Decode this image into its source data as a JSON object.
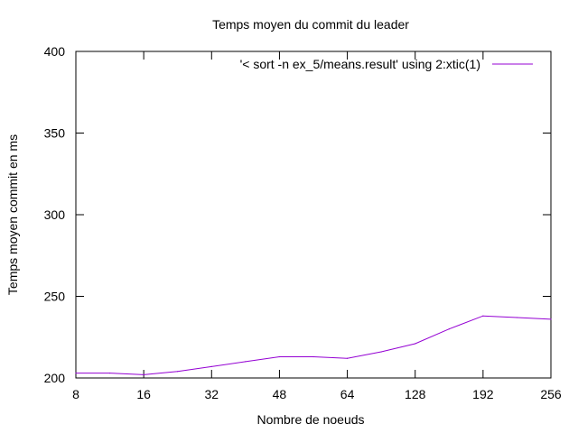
{
  "chart_data": {
    "type": "line",
    "title": "Temps moyen du commit du leader",
    "xlabel": "Nombre de noeuds",
    "ylabel": "Temps moyen commit en ms",
    "categories": [
      "8",
      "",
      "16",
      "",
      "32",
      "",
      "48",
      "",
      "64",
      "",
      "128",
      "",
      "192",
      "",
      "256"
    ],
    "x_tick_labels": [
      "8",
      "16",
      "32",
      "48",
      "64",
      "128",
      "192",
      "256"
    ],
    "y_ticks": [
      200,
      250,
      300,
      350,
      400
    ],
    "ylim": [
      200,
      400
    ],
    "series": [
      {
        "name": "'< sort -n ex_5/means.result' using 2:xtic(1)",
        "color": "#9400d3",
        "values": [
          203,
          203,
          202,
          204,
          207,
          210,
          213,
          213,
          212,
          216,
          221,
          230,
          238,
          237,
          236
        ]
      }
    ],
    "legend_position": "top-right",
    "grid": false
  }
}
